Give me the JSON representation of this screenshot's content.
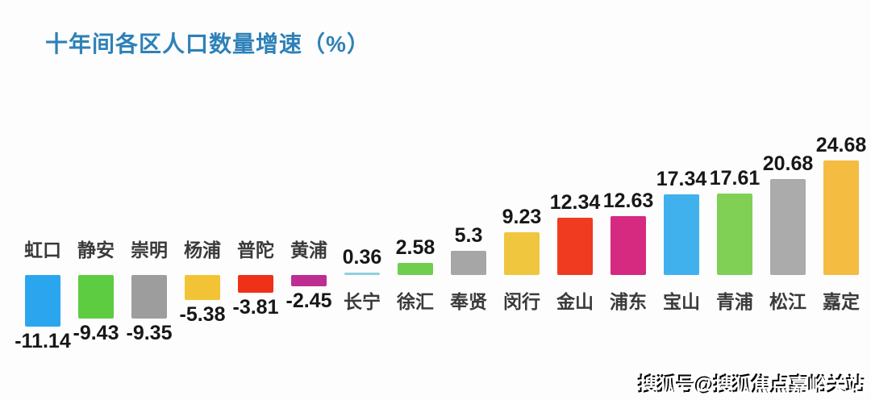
{
  "page": {
    "background": "#fdfdfd"
  },
  "header": {
    "title_color": "#2E81B8"
  },
  "watermark": {
    "text": "搜狐号@搜狐焦点嘉峪关站"
  },
  "chart_data": {
    "type": "bar",
    "title": "十年间各区人口数量增速（%）",
    "xlabel": "",
    "ylabel": "",
    "categories": [
      "虹口",
      "静安",
      "崇明",
      "杨浦",
      "普陀",
      "黄浦",
      "长宁",
      "徐汇",
      "奉贤",
      "闵行",
      "金山",
      "浦东",
      "宝山",
      "青浦",
      "松江",
      "嘉定"
    ],
    "values": [
      -11.14,
      -9.43,
      -9.35,
      -5.38,
      -3.81,
      -2.45,
      0.36,
      2.58,
      5.3,
      9.23,
      12.34,
      12.63,
      17.34,
      17.61,
      20.68,
      24.68
    ],
    "value_labels": [
      "-11.14",
      "-9.43",
      "-9.35",
      "-5.38",
      "-3.81",
      "-2.45",
      "0.36",
      "2.58",
      "5.3",
      "9.23",
      "12.34",
      "12.63",
      "17.34",
      "17.61",
      "20.68",
      "24.68"
    ],
    "bar_colors": [
      "#2BA6EE",
      "#5ECC41",
      "#9D9D9D",
      "#F2C335",
      "#EE3118",
      "#BE2D91",
      "#8FD0DF",
      "#6FCE4E",
      "#A6A6A6",
      "#F0C63E",
      "#F03B20",
      "#D62980",
      "#41B1EE",
      "#7FD055",
      "#ABABAB",
      "#F4BC41"
    ],
    "ylim": [
      -12,
      26
    ],
    "baseline": 0,
    "grid": false,
    "legend": false,
    "value_label_position": "outside-end",
    "category_label_position": "axis-opposite-side-of-bar"
  }
}
